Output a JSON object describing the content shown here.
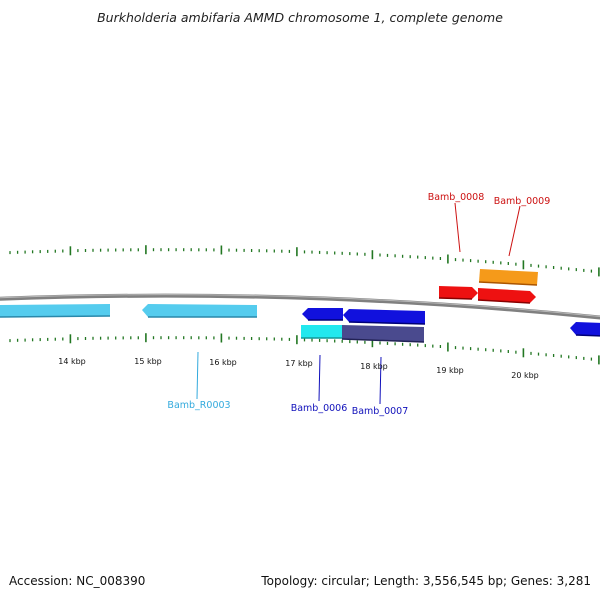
{
  "title": "Burkholderia ambifaria AMMD chromosome 1, complete genome",
  "footer": {
    "accession": "Accession: NC_008390",
    "summary": "Topology: circular; Length: 3,556,545 bp; Genes: 3,281"
  },
  "colors": {
    "backbone": "#888888",
    "tick": "#227722",
    "gene_light_blue": "#55ccee",
    "gene_blue": "#1111dd",
    "gene_cyan": "#22e8ee",
    "gene_slate": "#4a4a8e",
    "gene_red": "#ee1111",
    "gene_orange": "#f59a1a",
    "label_light_blue": "#33aadd",
    "label_blue": "#1111bb",
    "label_red": "#cc1111"
  },
  "scale_labels": [
    "14 kbp",
    "15 kbp",
    "16 kbp",
    "17 kbp",
    "18 kbp",
    "19 kbp",
    "20 kbp"
  ],
  "gene_labels": [
    "Bamb_0008",
    "Bamb_0009",
    "Bamb_R0003",
    "Bamb_0006",
    "Bamb_0007"
  ]
}
